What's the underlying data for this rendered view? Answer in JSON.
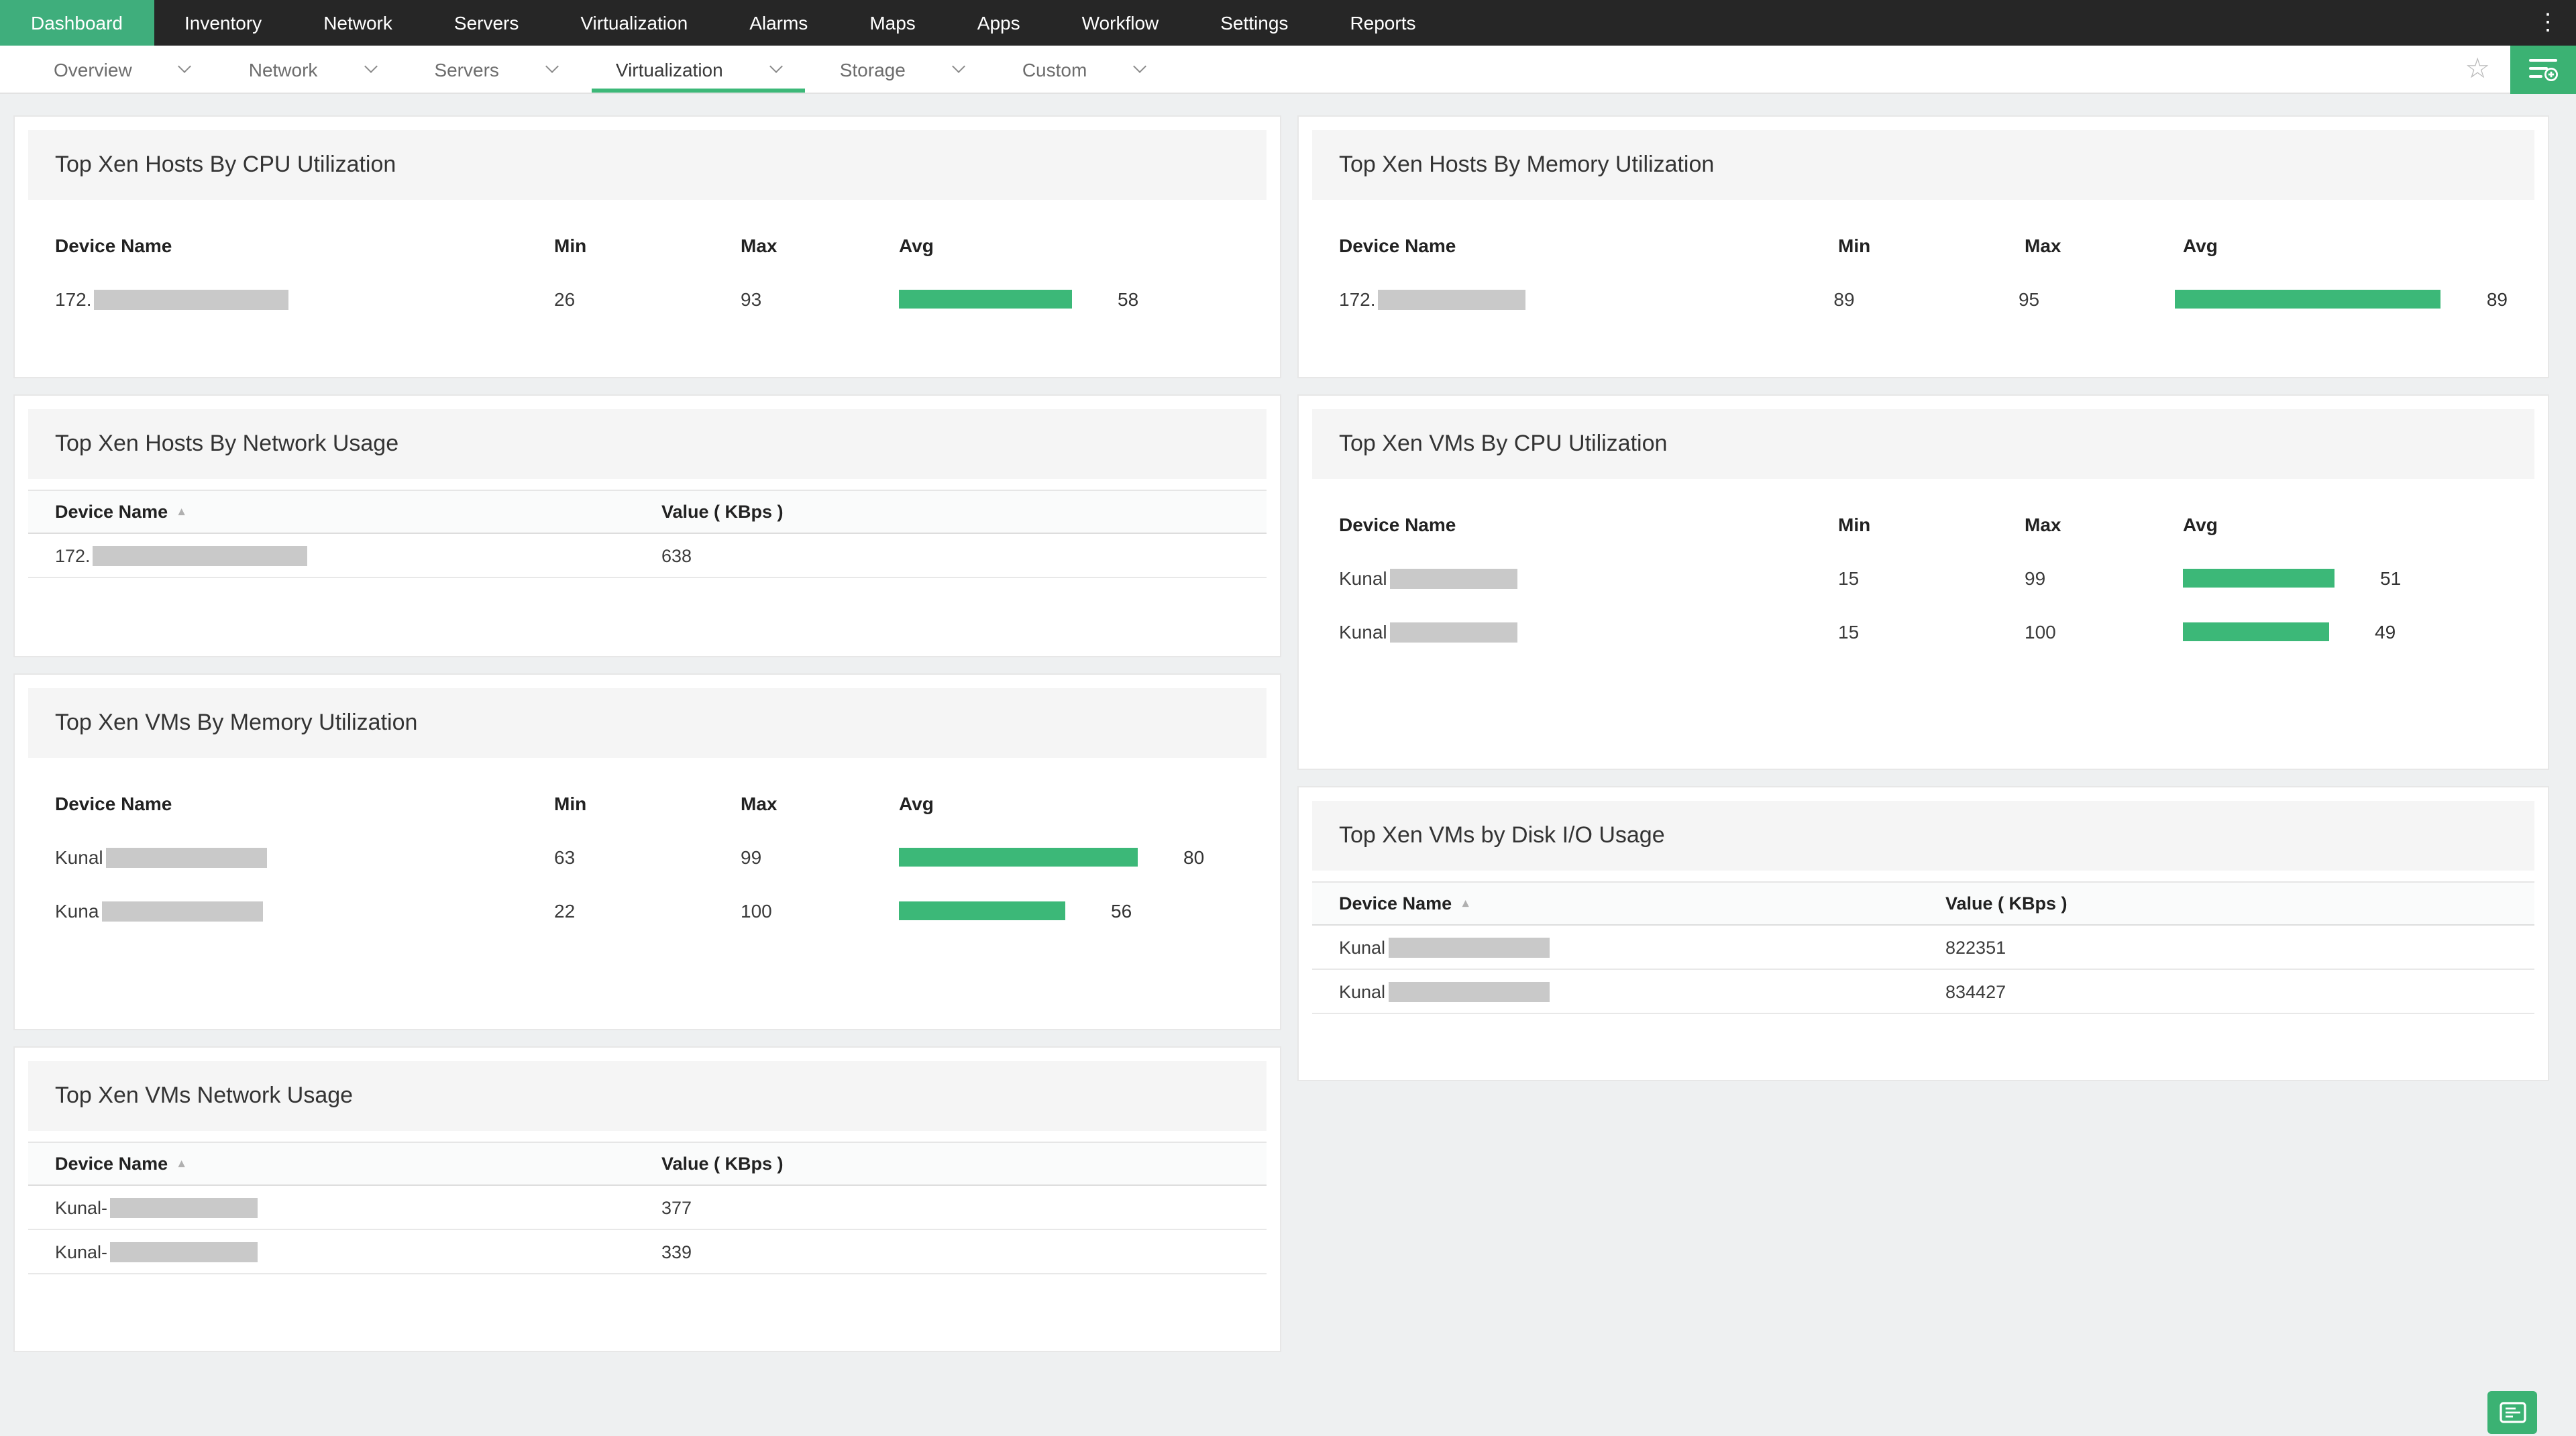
{
  "colors": {
    "accent_green": "#3fae7c",
    "bar_green": "#3cb878",
    "button_green": "#3bb273",
    "nav_bg": "#262626",
    "content_bg": "#eef0f1"
  },
  "top_nav": {
    "items": [
      {
        "label": "Dashboard",
        "active": true
      },
      {
        "label": "Inventory",
        "active": false
      },
      {
        "label": "Network",
        "active": false
      },
      {
        "label": "Servers",
        "active": false
      },
      {
        "label": "Virtualization",
        "active": false
      },
      {
        "label": "Alarms",
        "active": false
      },
      {
        "label": "Maps",
        "active": false
      },
      {
        "label": "Apps",
        "active": false
      },
      {
        "label": "Workflow",
        "active": false
      },
      {
        "label": "Settings",
        "active": false
      },
      {
        "label": "Reports",
        "active": false
      }
    ]
  },
  "tab_bar": {
    "tabs": [
      {
        "label": "Overview",
        "active": false
      },
      {
        "label": "Network",
        "active": false
      },
      {
        "label": "Servers",
        "active": false
      },
      {
        "label": "Virtualization",
        "active": true
      },
      {
        "label": "Storage",
        "active": false
      },
      {
        "label": "Custom",
        "active": false
      }
    ],
    "sort_arrow": "▴",
    "star_glyph": "☆",
    "kebab_glyph": "⋮"
  },
  "cards": {
    "cpu_hosts": {
      "title": "Top Xen Hosts By CPU Utilization",
      "col_device": "Device Name",
      "col_min": "Min",
      "col_max": "Max",
      "col_avg": "Avg",
      "rows": [
        {
          "device": "172.",
          "min": "26",
          "max": "93",
          "avg": 58
        }
      ]
    },
    "net_hosts": {
      "title": "Top Xen Hosts By Network Usage",
      "col_device": "Device Name",
      "col_value": "Value ( KBps )",
      "rows": [
        {
          "device": "172.",
          "value": "638"
        }
      ]
    },
    "mem_vms": {
      "title": "Top Xen VMs By Memory Utilization",
      "col_device": "Device Name",
      "col_min": "Min",
      "col_max": "Max",
      "col_avg": "Avg",
      "rows": [
        {
          "device": "Kunal",
          "min": "63",
          "max": "99",
          "avg": 80
        },
        {
          "device": "Kuna",
          "min": "22",
          "max": "100",
          "avg": 56
        }
      ]
    },
    "net_vms": {
      "title": "Top Xen VMs Network Usage",
      "col_device": "Device Name",
      "col_value": "Value ( KBps )",
      "rows": [
        {
          "device": "Kunal-",
          "value": "377"
        },
        {
          "device": "Kunal-",
          "value": "339"
        }
      ]
    },
    "mem_hosts": {
      "title": "Top Xen Hosts By Memory Utilization",
      "col_device": "Device Name",
      "col_min": "Min",
      "col_max": "Max",
      "col_avg": "Avg",
      "rows": [
        {
          "device": "172.",
          "min": "89",
          "max": "95",
          "avg": 89
        }
      ]
    },
    "cpu_vms": {
      "title": "Top Xen VMs By CPU Utilization",
      "col_device": "Device Name",
      "col_min": "Min",
      "col_max": "Max",
      "col_avg": "Avg",
      "rows": [
        {
          "device": "Kunal",
          "min": "15",
          "max": "99",
          "avg": 51
        },
        {
          "device": "Kunal",
          "min": "15",
          "max": "100",
          "avg": 49
        }
      ]
    },
    "disk_vms": {
      "title": "Top Xen VMs by Disk I/O Usage",
      "col_device": "Device Name",
      "col_value": "Value ( KBps )",
      "rows": [
        {
          "device": "Kunal",
          "value": "822351"
        },
        {
          "device": "Kunal",
          "value": "834427"
        }
      ]
    }
  }
}
